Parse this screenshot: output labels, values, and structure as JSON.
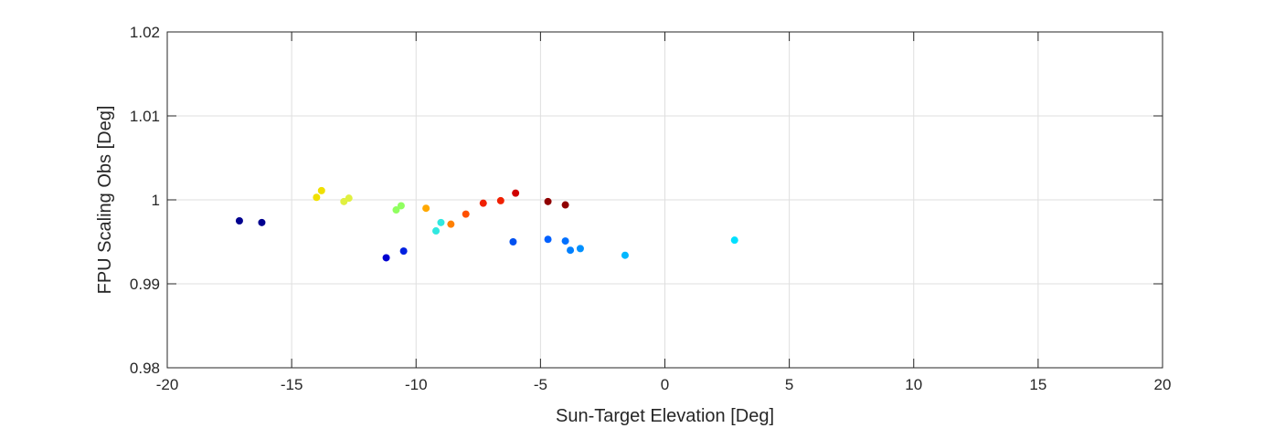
{
  "chart_data": {
    "type": "scatter",
    "title": "",
    "xlabel": "Sun-Target Elevation [Deg]",
    "ylabel": "FPU Scaling Obs [Deg]",
    "xlim": [
      -20,
      20
    ],
    "ylim": [
      0.98,
      1.02
    ],
    "xticks": [
      -20,
      -15,
      -10,
      -5,
      0,
      5,
      10,
      15,
      20
    ],
    "yticks": [
      0.98,
      0.99,
      1,
      1.01,
      1.02
    ],
    "xtick_labels": [
      "-20",
      "-15",
      "-10",
      "-5",
      "0",
      "5",
      "10",
      "15",
      "20"
    ],
    "ytick_labels": [
      "0.98",
      "0.99",
      "1",
      "1.01",
      "1.02"
    ],
    "grid": true,
    "box": true,
    "points": [
      {
        "x": -17.1,
        "y": 0.9975,
        "color": "#00008f"
      },
      {
        "x": -16.2,
        "y": 0.9973,
        "color": "#00008f"
      },
      {
        "x": -14.0,
        "y": 1.0003,
        "color": "#f0e000"
      },
      {
        "x": -13.8,
        "y": 1.0011,
        "color": "#f0e000"
      },
      {
        "x": -12.9,
        "y": 0.9998,
        "color": "#e0f040"
      },
      {
        "x": -12.7,
        "y": 1.0002,
        "color": "#e0f040"
      },
      {
        "x": -11.2,
        "y": 0.9931,
        "color": "#0000d0"
      },
      {
        "x": -10.8,
        "y": 0.9988,
        "color": "#90ff60"
      },
      {
        "x": -10.6,
        "y": 0.9993,
        "color": "#90ff60"
      },
      {
        "x": -10.5,
        "y": 0.9939,
        "color": "#0020e0"
      },
      {
        "x": -9.6,
        "y": 0.999,
        "color": "#ffa800"
      },
      {
        "x": -9.2,
        "y": 0.9963,
        "color": "#30e8e0"
      },
      {
        "x": -9.0,
        "y": 0.9973,
        "color": "#30e8e0"
      },
      {
        "x": -8.6,
        "y": 0.9971,
        "color": "#ff8000"
      },
      {
        "x": -8.0,
        "y": 0.9983,
        "color": "#ff5000"
      },
      {
        "x": -7.3,
        "y": 0.9996,
        "color": "#f02000"
      },
      {
        "x": -6.6,
        "y": 0.9999,
        "color": "#f02000"
      },
      {
        "x": -6.1,
        "y": 0.995,
        "color": "#0050f0"
      },
      {
        "x": -6.0,
        "y": 1.0008,
        "color": "#d00000"
      },
      {
        "x": -4.7,
        "y": 0.9953,
        "color": "#0060ff"
      },
      {
        "x": -4.7,
        "y": 0.9998,
        "color": "#900000"
      },
      {
        "x": -4.0,
        "y": 0.9951,
        "color": "#0070ff"
      },
      {
        "x": -4.0,
        "y": 0.9994,
        "color": "#900000"
      },
      {
        "x": -3.8,
        "y": 0.994,
        "color": "#0080ff"
      },
      {
        "x": -3.4,
        "y": 0.9942,
        "color": "#0090ff"
      },
      {
        "x": -1.6,
        "y": 0.9934,
        "color": "#00b8ff"
      },
      {
        "x": 2.8,
        "y": 0.9952,
        "color": "#00e0ff"
      }
    ]
  }
}
